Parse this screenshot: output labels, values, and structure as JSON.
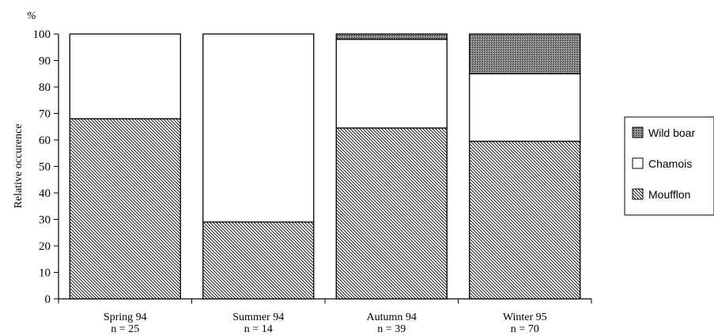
{
  "chart_data": {
    "type": "bar",
    "stacked": true,
    "categories": [
      "Spring 94",
      "Summer 94",
      "Autumn 94",
      "Winter 95"
    ],
    "sample_sizes": [
      "n = 25",
      "n = 14",
      "n = 39",
      "n = 70"
    ],
    "series": [
      {
        "name": "Moufflon",
        "values": [
          68,
          29,
          64.5,
          59.5
        ]
      },
      {
        "name": "Chamois",
        "values": [
          32,
          71,
          33.5,
          25.5
        ]
      },
      {
        "name": "Wild boar",
        "values": [
          0,
          0,
          2,
          15
        ]
      }
    ],
    "ylabel": "Relative occurence",
    "yunit": "%",
    "ylim": [
      0,
      100
    ],
    "yticks": [
      0,
      10,
      20,
      30,
      40,
      50,
      60,
      70,
      80,
      90,
      100
    ],
    "legend_order": [
      "Wild boar",
      "Chamois",
      "Moufflon"
    ],
    "legend_position": "right",
    "grid": false
  }
}
